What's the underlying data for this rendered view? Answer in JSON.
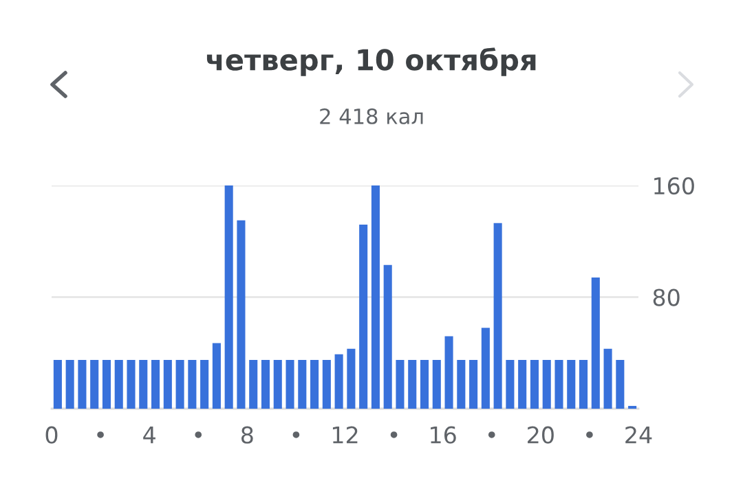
{
  "chart_data": {
    "type": "bar",
    "title": "четверг, 10 октября",
    "subtitle": "2 418 кал",
    "x": [
      0.25,
      0.75,
      1.25,
      1.75,
      2.25,
      2.75,
      3.25,
      3.75,
      4.25,
      4.75,
      5.25,
      5.75,
      6.25,
      6.75,
      7.25,
      7.75,
      8.25,
      8.75,
      9.25,
      9.75,
      10.25,
      10.75,
      11.25,
      11.75,
      12.25,
      12.75,
      13.25,
      13.75,
      14.25,
      14.75,
      15.25,
      15.75,
      16.25,
      16.75,
      17.25,
      17.75,
      18.25,
      18.75,
      19.25,
      19.75,
      20.25,
      20.75,
      21.25,
      21.75,
      22.25,
      22.75,
      23.25,
      23.75
    ],
    "values": [
      35,
      35,
      35,
      35,
      35,
      35,
      35,
      35,
      35,
      35,
      35,
      35,
      35,
      47,
      160,
      135,
      35,
      35,
      35,
      35,
      35,
      35,
      35,
      39,
      43,
      132,
      160,
      103,
      35,
      35,
      35,
      35,
      52,
      35,
      35,
      58,
      133,
      35,
      35,
      35,
      35,
      35,
      35,
      35,
      94,
      43,
      35,
      2
    ],
    "color": "#3871db",
    "xlim": [
      0,
      24
    ],
    "xticks": [
      0,
      {
        "value": 2,
        "label": "•"
      },
      4,
      {
        "value": 6,
        "label": "•"
      },
      8,
      {
        "value": 10,
        "label": "•"
      },
      12,
      {
        "value": 14,
        "label": "•"
      },
      16,
      {
        "value": 18,
        "label": "•"
      },
      20,
      {
        "value": 22,
        "label": "•"
      },
      24
    ],
    "ylim": [
      0,
      160
    ],
    "yticks": [
      {
        "value": 0,
        "label": null
      },
      80,
      160
    ],
    "grid": "y"
  }
}
